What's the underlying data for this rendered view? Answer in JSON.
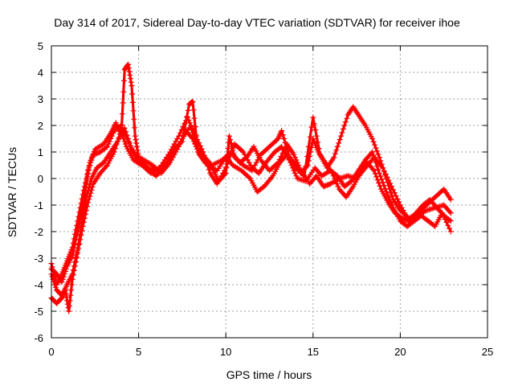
{
  "chart_data": {
    "type": "scatter",
    "title": "Day 314 of 2017, Sidereal Day-to-day VTEC variation (SDTVAR) for receiver ihoe",
    "xlabel": "GPS time / hours",
    "ylabel": "SDTVAR / TECUs",
    "xlim": [
      0,
      25
    ],
    "ylim": [
      -6,
      5
    ],
    "xticks": [
      "0",
      "5",
      "10",
      "15",
      "20",
      "25"
    ],
    "yticks": [
      "-6",
      "-5",
      "-4",
      "-3",
      "-2",
      "-1",
      "0",
      "1",
      "2",
      "3",
      "4",
      "5"
    ],
    "grid": true,
    "marker": "+",
    "series": [
      {
        "name": "ihoe",
        "color": "#ff0000",
        "tracks": [
          [
            [
              0,
              -3.4
            ],
            [
              0.3,
              -3.6
            ],
            [
              0.6,
              -3.9
            ],
            [
              0.9,
              -3.3
            ],
            [
              1.2,
              -2.9
            ],
            [
              1.5,
              -2.0
            ],
            [
              1.8,
              -1.0
            ],
            [
              2.0,
              -0.2
            ],
            [
              2.2,
              0.6
            ],
            [
              2.5,
              1.1
            ],
            [
              3.0,
              1.3
            ],
            [
              3.4,
              1.7
            ],
            [
              3.7,
              2.1
            ],
            [
              4.0,
              1.6
            ],
            [
              4.2,
              4.1
            ],
            [
              4.4,
              4.3
            ],
            [
              4.6,
              3.5
            ],
            [
              4.8,
              1.6
            ],
            [
              5.0,
              0.8
            ],
            [
              5.3,
              0.6
            ],
            [
              5.6,
              0.3
            ],
            [
              6.0,
              0.1
            ],
            [
              6.5,
              0.4
            ],
            [
              7.0,
              1.1
            ],
            [
              7.5,
              1.4
            ],
            [
              7.9,
              2.8
            ],
            [
              8.1,
              2.9
            ],
            [
              8.4,
              1.0
            ],
            [
              8.8,
              0.6
            ],
            [
              9.2,
              0.4
            ],
            [
              9.6,
              -0.1
            ],
            [
              10.0,
              0.2
            ],
            [
              10.2,
              1.6
            ],
            [
              10.5,
              0.8
            ],
            [
              11.0,
              0.5
            ],
            [
              11.5,
              0.3
            ],
            [
              12.0,
              0.9
            ],
            [
              12.5,
              1.2
            ],
            [
              13.0,
              1.5
            ],
            [
              13.2,
              1.8
            ],
            [
              13.6,
              0.9
            ],
            [
              14.0,
              0.4
            ],
            [
              14.5,
              0.1
            ],
            [
              15.0,
              2.3
            ],
            [
              15.4,
              0.9
            ],
            [
              15.8,
              0.4
            ],
            [
              16.2,
              0.8
            ],
            [
              16.6,
              1.6
            ],
            [
              17.0,
              2.4
            ],
            [
              17.3,
              2.7
            ],
            [
              17.6,
              2.4
            ],
            [
              18.0,
              2.0
            ],
            [
              18.4,
              1.5
            ],
            [
              18.8,
              0.8
            ],
            [
              19.2,
              0.0
            ],
            [
              19.6,
              -0.8
            ],
            [
              20.0,
              -1.2
            ],
            [
              20.5,
              -1.5
            ],
            [
              21.0,
              -1.3
            ],
            [
              21.5,
              -1.0
            ],
            [
              22.0,
              -0.7
            ],
            [
              22.5,
              -0.4
            ],
            [
              22.9,
              -0.8
            ]
          ],
          [
            [
              0,
              -3.6
            ],
            [
              0.3,
              -4.2
            ],
            [
              0.6,
              -4.4
            ],
            [
              0.9,
              -4.0
            ],
            [
              1.2,
              -3.6
            ],
            [
              1.5,
              -2.7
            ],
            [
              1.8,
              -1.5
            ],
            [
              2.0,
              -0.7
            ],
            [
              2.3,
              0.0
            ],
            [
              2.6,
              0.4
            ],
            [
              3.0,
              0.6
            ],
            [
              3.4,
              1.0
            ],
            [
              3.8,
              1.4
            ],
            [
              4.2,
              1.9
            ],
            [
              4.6,
              1.1
            ],
            [
              5.0,
              0.6
            ],
            [
              5.5,
              0.4
            ],
            [
              6.0,
              0.3
            ],
            [
              6.5,
              0.5
            ],
            [
              7.0,
              0.9
            ],
            [
              7.5,
              1.5
            ],
            [
              8.0,
              2.0
            ],
            [
              8.3,
              1.2
            ],
            [
              8.8,
              0.8
            ],
            [
              9.2,
              0.5
            ],
            [
              9.8,
              0.7
            ],
            [
              10.3,
              1.0
            ],
            [
              10.8,
              0.6
            ],
            [
              11.2,
              0.8
            ],
            [
              11.6,
              1.2
            ],
            [
              12.0,
              0.7
            ],
            [
              12.5,
              0.3
            ],
            [
              13.0,
              0.6
            ],
            [
              13.5,
              1.3
            ],
            [
              13.9,
              0.9
            ],
            [
              14.3,
              0.3
            ],
            [
              14.8,
              -0.2
            ],
            [
              15.2,
              0.1
            ],
            [
              15.6,
              -0.3
            ],
            [
              16.0,
              -0.2
            ],
            [
              16.5,
              0.0
            ],
            [
              17.0,
              0.1
            ],
            [
              17.5,
              0.0
            ],
            [
              18.0,
              0.4
            ],
            [
              18.5,
              0.8
            ],
            [
              19.0,
              0.4
            ],
            [
              19.5,
              -0.3
            ],
            [
              20.0,
              -1.0
            ],
            [
              20.5,
              -1.6
            ],
            [
              21.0,
              -1.4
            ],
            [
              21.5,
              -1.2
            ],
            [
              22.0,
              -1.1
            ],
            [
              22.5,
              -1.0
            ],
            [
              22.9,
              -1.3
            ]
          ],
          [
            [
              0,
              -4.5
            ],
            [
              0.3,
              -4.7
            ],
            [
              0.6,
              -4.5
            ],
            [
              0.8,
              -4.2
            ],
            [
              1.0,
              -5.0
            ],
            [
              1.2,
              -3.8
            ],
            [
              1.5,
              -2.8
            ],
            [
              1.8,
              -1.8
            ],
            [
              2.1,
              -0.9
            ],
            [
              2.4,
              -0.2
            ],
            [
              2.8,
              0.2
            ],
            [
              3.2,
              0.5
            ],
            [
              3.6,
              1.0
            ],
            [
              4.0,
              1.8
            ],
            [
              4.3,
              1.2
            ],
            [
              4.7,
              0.7
            ],
            [
              5.2,
              0.5
            ],
            [
              5.7,
              0.2
            ],
            [
              6.2,
              0.4
            ],
            [
              6.8,
              1.0
            ],
            [
              7.3,
              1.6
            ],
            [
              7.8,
              2.3
            ],
            [
              8.2,
              1.7
            ],
            [
              8.7,
              1.0
            ],
            [
              9.1,
              0.2
            ],
            [
              9.5,
              -0.2
            ],
            [
              10.0,
              0.4
            ],
            [
              10.5,
              1.3
            ],
            [
              11.0,
              1.0
            ],
            [
              11.5,
              0.4
            ],
            [
              11.9,
              0.2
            ],
            [
              12.3,
              0.6
            ],
            [
              12.8,
              1.0
            ],
            [
              13.2,
              1.2
            ],
            [
              13.7,
              0.6
            ],
            [
              14.1,
              0.0
            ],
            [
              14.6,
              -0.1
            ],
            [
              15.1,
              0.4
            ],
            [
              15.5,
              0.1
            ],
            [
              16.0,
              0.3
            ],
            [
              16.4,
              0.1
            ],
            [
              16.8,
              -0.3
            ],
            [
              17.2,
              -0.1
            ],
            [
              17.6,
              0.3
            ],
            [
              18.0,
              0.7
            ],
            [
              18.4,
              1.0
            ],
            [
              18.8,
              0.2
            ],
            [
              19.2,
              -0.5
            ],
            [
              19.6,
              -1.1
            ],
            [
              20.0,
              -1.6
            ],
            [
              20.4,
              -1.8
            ],
            [
              20.8,
              -1.6
            ],
            [
              21.2,
              -1.4
            ],
            [
              21.6,
              -1.6
            ],
            [
              22.0,
              -1.8
            ],
            [
              22.4,
              -1.3
            ],
            [
              22.9,
              -2.0
            ]
          ],
          [
            [
              0,
              -3.2
            ],
            [
              0.3,
              -4.0
            ],
            [
              0.6,
              -3.6
            ],
            [
              0.9,
              -3.1
            ],
            [
              1.2,
              -2.6
            ],
            [
              1.5,
              -1.6
            ],
            [
              1.8,
              -0.6
            ],
            [
              2.1,
              0.3
            ],
            [
              2.4,
              0.9
            ],
            [
              2.8,
              1.0
            ],
            [
              3.2,
              1.2
            ],
            [
              3.6,
              1.8
            ],
            [
              4.0,
              2.0
            ],
            [
              4.4,
              1.4
            ],
            [
              4.8,
              0.9
            ],
            [
              5.3,
              0.7
            ],
            [
              5.8,
              0.5
            ],
            [
              6.3,
              0.2
            ],
            [
              6.8,
              0.6
            ],
            [
              7.3,
              1.2
            ],
            [
              7.7,
              1.8
            ],
            [
              8.1,
              1.5
            ],
            [
              8.5,
              0.9
            ],
            [
              9.0,
              0.5
            ],
            [
              9.5,
              0.3
            ],
            [
              10.0,
              0.8
            ],
            [
              10.4,
              0.5
            ],
            [
              10.9,
              0.3
            ],
            [
              11.4,
              0.0
            ],
            [
              11.8,
              -0.5
            ],
            [
              12.2,
              -0.3
            ],
            [
              12.7,
              0.1
            ],
            [
              13.1,
              0.6
            ],
            [
              13.5,
              0.9
            ],
            [
              13.9,
              0.6
            ],
            [
              14.3,
              0.2
            ],
            [
              14.7,
              0.5
            ],
            [
              15.0,
              1.5
            ],
            [
              15.3,
              1.0
            ],
            [
              15.7,
              0.6
            ],
            [
              16.1,
              0.2
            ],
            [
              16.5,
              -0.4
            ],
            [
              16.9,
              -0.7
            ],
            [
              17.3,
              -0.3
            ],
            [
              17.7,
              0.2
            ],
            [
              18.1,
              0.6
            ],
            [
              18.5,
              0.3
            ],
            [
              18.9,
              -0.4
            ],
            [
              19.3,
              -0.9
            ],
            [
              19.7,
              -1.3
            ],
            [
              20.1,
              -1.5
            ],
            [
              20.5,
              -1.6
            ],
            [
              20.9,
              -1.3
            ],
            [
              21.3,
              -1.0
            ],
            [
              21.7,
              -0.8
            ],
            [
              22.1,
              -1.1
            ],
            [
              22.5,
              -1.4
            ],
            [
              22.9,
              -1.6
            ]
          ]
        ]
      }
    ]
  }
}
